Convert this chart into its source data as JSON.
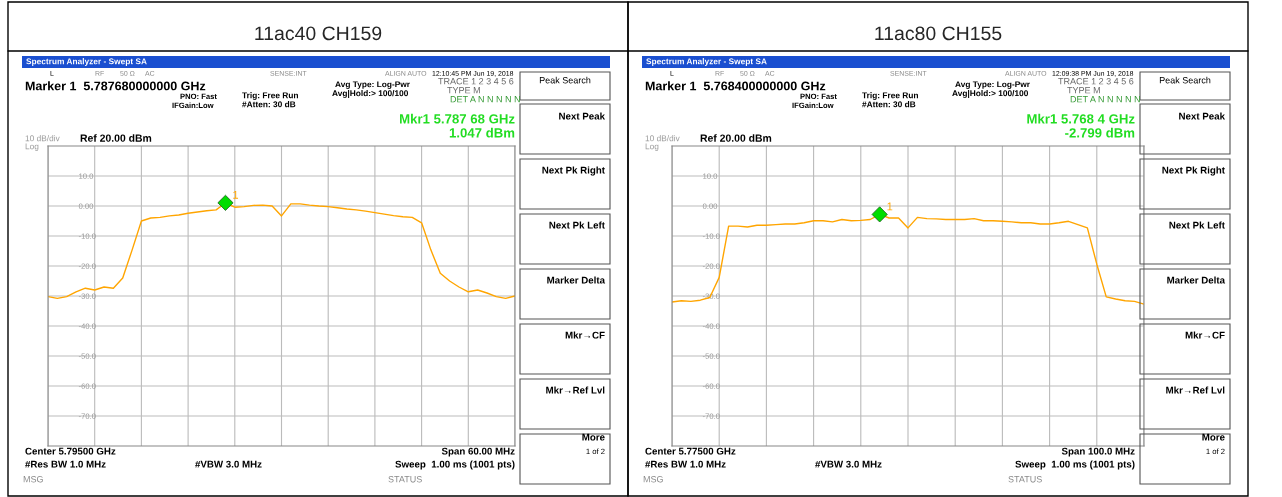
{
  "chart_data": [
    {
      "type": "line",
      "title": "11ac40 CH159",
      "categories": [
        null,
        null,
        null,
        null,
        null,
        null,
        null,
        null,
        null,
        null,
        null,
        null,
        null,
        null,
        null,
        null,
        null,
        null,
        null,
        null,
        null,
        null,
        null,
        null,
        null,
        null,
        null,
        null,
        null,
        null,
        null,
        null,
        null,
        null,
        null,
        null,
        null,
        null,
        null,
        null,
        null,
        null,
        null,
        null,
        null,
        null,
        null,
        null,
        null,
        null,
        null
      ],
      "series": [
        {
          "color": "#ffa500",
          "values": [
            -30.2,
            -30.8,
            -30.2,
            -28.6,
            -27.4,
            -28,
            -27,
            -27.4,
            -24,
            -14.7,
            -5,
            -4,
            -3.8,
            -3.3,
            -3,
            -2.4,
            -2,
            -1.6,
            -1.3,
            1.0,
            -0.4,
            -0.2,
            0.2,
            0.3,
            0,
            -3.3,
            0.7,
            0.7,
            0.3,
            0,
            -0.2,
            -0.6,
            -1,
            -1.3,
            -1.7,
            -2.2,
            -2.7,
            -3.2,
            -3.6,
            -3.8,
            -5.6,
            -14.7,
            -22.4,
            -25,
            -27,
            -28.6,
            -28,
            -29,
            -30.2,
            -30.8,
            -30
          ]
        },
        {
          "type": "scatter",
          "name": "1",
          "color": "#00dd00",
          "marker": "diamond",
          "values": [
            null,
            null,
            null,
            null,
            null,
            null,
            null,
            null,
            null,
            null,
            null,
            null,
            null,
            null,
            null,
            null,
            null,
            null,
            null,
            1.047,
            null,
            null,
            null,
            null,
            null,
            null,
            null,
            null,
            null,
            null,
            null,
            null,
            null,
            null,
            null,
            null,
            null,
            null,
            null,
            null,
            null,
            null,
            null,
            null,
            null,
            null,
            null,
            null,
            null,
            null,
            null
          ]
        }
      ],
      "ylim": [
        -80,
        20
      ],
      "yticks": [
        {
          "value": 10,
          "label": "10.0"
        },
        {
          "value": 0,
          "label": "0.00"
        },
        {
          "value": -10,
          "label": "-10.0"
        },
        {
          "value": -20,
          "label": "-20.0"
        },
        {
          "value": -30,
          "label": "-30.0"
        },
        {
          "value": -40,
          "label": "-40.0"
        },
        {
          "value": -50,
          "label": "-50.0"
        },
        {
          "value": -60,
          "label": "-60.0"
        },
        {
          "value": -70,
          "label": "-70.0"
        }
      ],
      "grid": true,
      "legend": false,
      "tick_labels": "y",
      "annotations": [
        "Spectrum Analyzer - Swept SA",
        "L",
        "RF",
        "50 Ω",
        "AC",
        "SENSE:INT",
        "ALIGN AUTO",
        "12:10:45 PM Jun 19, 2018",
        "Marker 1  5.787680000000 GHz",
        "PNO: Fast",
        "IFGain:Low",
        "Trig: Free Run",
        "#Atten: 30 dB",
        "Avg Type: Log-Pwr",
        "Avg|Hold:> 100/100",
        "TRACE 1 2 3 4 5 6",
        "TYPE M",
        "DET A N N N N N",
        "Mkr1 5.787 68 GHz",
        "1.047 dBm",
        "10 dB/div",
        "Ref 20.00 dBm",
        "Log",
        "Center 5.79500 GHz",
        "Span 60.00 MHz",
        "#Res BW 1.0 MHz",
        "#VBW 3.0 MHz",
        "Sweep  1.00 ms (1001 pts)",
        "MSG",
        "STATUS",
        "Peak Search",
        "Next Peak",
        "Next Pk Right",
        "Next Pk Left",
        "Marker Delta",
        "Mkr→CF",
        "Mkr→Ref Lvl",
        "More",
        "1 of 2"
      ]
    },
    {
      "type": "line",
      "title": "11ac80 CH155",
      "categories": [
        null,
        null,
        null,
        null,
        null,
        null,
        null,
        null,
        null,
        null,
        null,
        null,
        null,
        null,
        null,
        null,
        null,
        null,
        null,
        null,
        null,
        null,
        null,
        null,
        null,
        null,
        null,
        null,
        null,
        null,
        null,
        null,
        null,
        null,
        null,
        null,
        null,
        null,
        null,
        null,
        null,
        null,
        null,
        null,
        null,
        null,
        null,
        null,
        null,
        null,
        null
      ],
      "series": [
        {
          "color": "#ffa500",
          "values": [
            -32,
            -31.6,
            -31.8,
            -31.4,
            -30.5,
            -23.8,
            -6.7,
            -6.7,
            -7,
            -6.4,
            -6.4,
            -6.2,
            -6,
            -6,
            -5.6,
            -4.9,
            -4.9,
            -5.3,
            -4.5,
            -4.9,
            -4.8,
            -4.5,
            -2.8,
            -4,
            -4,
            -7.3,
            -3.8,
            -4.2,
            -4.3,
            -4.5,
            -4.5,
            -4.5,
            -4.2,
            -4.9,
            -4.9,
            -5.1,
            -5.3,
            -5.6,
            -5.6,
            -6,
            -6,
            -5.6,
            -5.1,
            -6.2,
            -7.3,
            -19.4,
            -30.3,
            -31,
            -31.6,
            -31.8,
            -32.7
          ]
        },
        {
          "type": "scatter",
          "name": "1",
          "color": "#00dd00",
          "marker": "diamond",
          "values": [
            null,
            null,
            null,
            null,
            null,
            null,
            null,
            null,
            null,
            null,
            null,
            null,
            null,
            null,
            null,
            null,
            null,
            null,
            null,
            null,
            null,
            null,
            -2.799,
            null,
            null,
            null,
            null,
            null,
            null,
            null,
            null,
            null,
            null,
            null,
            null,
            null,
            null,
            null,
            null,
            null,
            null,
            null,
            null,
            null,
            null,
            null,
            null,
            null,
            null,
            null,
            null
          ]
        }
      ],
      "ylim": [
        -80,
        20
      ],
      "yticks": [
        {
          "value": 10,
          "label": "10.0"
        },
        {
          "value": 0,
          "label": "0.00"
        },
        {
          "value": -10,
          "label": "-10.0"
        },
        {
          "value": -20,
          "label": "-20.0"
        },
        {
          "value": -30,
          "label": "-30.0"
        },
        {
          "value": -40,
          "label": "-40.0"
        },
        {
          "value": -50,
          "label": "-50.0"
        },
        {
          "value": -60,
          "label": "-60.0"
        },
        {
          "value": -70,
          "label": "-70.0"
        }
      ],
      "grid": true,
      "legend": false,
      "tick_labels": "y",
      "annotations": [
        "Spectrum Analyzer - Swept SA",
        "L",
        "RF",
        "50 Ω",
        "AC",
        "SENSE:INT",
        "ALIGN AUTO",
        "12:09:38 PM Jun 19, 2018",
        "Marker 1  5.768400000000 GHz",
        "PNO: Fast",
        "IFGain:Low",
        "Trig: Free Run",
        "#Atten: 30 dB",
        "Avg Type: Log-Pwr",
        "Avg|Hold:> 100/100",
        "TRACE 1 2 3 4 5 6",
        "TYPE M",
        "DET A N N N N N",
        "Mkr1 5.768 4 GHz",
        "-2.799 dBm",
        "10 dB/div",
        "Ref 20.00 dBm",
        "Log",
        "Center 5.77500 GHz",
        "Span 100.0 MHz",
        "#Res BW 1.0 MHz",
        "#VBW 3.0 MHz",
        "Sweep  1.00 ms (1001 pts)",
        "MSG",
        "STATUS",
        "Peak Search",
        "Next Peak",
        "Next Pk Right",
        "Next Pk Left",
        "Marker Delta",
        "Mkr→CF",
        "Mkr→Ref Lvl",
        "More",
        "1 of 2"
      ]
    }
  ]
}
